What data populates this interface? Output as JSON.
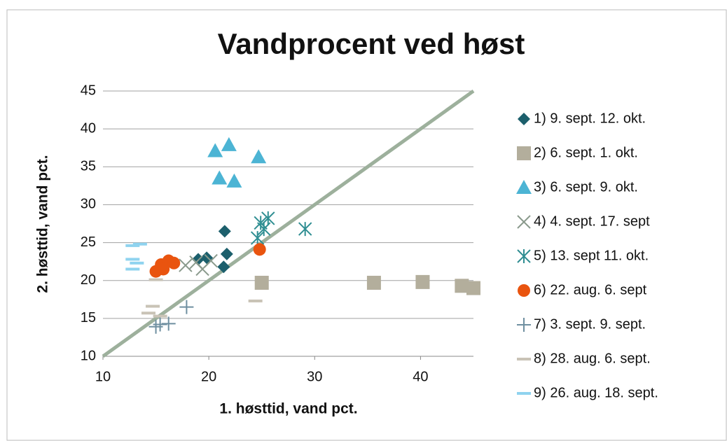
{
  "chart_data": {
    "type": "scatter",
    "title": "Vandprocent ved høst",
    "x_label": "1. høsttid, vand pct.",
    "y_label": "2. høsttid, vand pct.",
    "xlim": [
      10,
      45
    ],
    "ylim": [
      10,
      45
    ],
    "xticks": [
      10,
      20,
      30,
      40
    ],
    "yticks": [
      10,
      15,
      20,
      25,
      30,
      35,
      40,
      45
    ],
    "grid": true,
    "legend": "right",
    "reference_line": {
      "x": [
        10,
        45
      ],
      "y": [
        10,
        45
      ],
      "color": "#9db09c"
    },
    "series": [
      {
        "name": "1) 9. sept. 12. okt.",
        "color": "#1c5f6c",
        "marker": "diamond",
        "x": [
          19,
          19.8,
          21.5,
          21.7,
          21.4
        ],
        "values": [
          22.8,
          23,
          26.5,
          23.5,
          21.8
        ]
      },
      {
        "name": "2) 6. sept. 1. okt.",
        "color": "#b3ae9c",
        "marker": "square",
        "x": [
          25,
          35.6,
          40.2,
          43.9,
          45
        ],
        "values": [
          19.7,
          19.7,
          19.8,
          19.3,
          19
        ]
      },
      {
        "name": "3) 6. sept. 9. okt.",
        "color": "#4cb4d4",
        "marker": "triangle",
        "x": [
          20.6,
          21.9,
          24.7,
          21,
          22.4
        ],
        "values": [
          37.1,
          37.9,
          36.3,
          33.5,
          33.1
        ]
      },
      {
        "name": "4) 4. sept. 17. sept",
        "color": "#8a9a8c",
        "marker": "x",
        "x": [
          17.8,
          18.8,
          19.4,
          20.2
        ],
        "values": [
          22,
          22.4,
          21.5,
          22.6
        ]
      },
      {
        "name": "5) 13. sept 11. okt.",
        "color": "#2f8e92",
        "marker": "star",
        "x": [
          24.6,
          24.9,
          25.2,
          25.6,
          29.1
        ],
        "values": [
          25.6,
          27.6,
          26.8,
          28.2,
          26.8
        ]
      },
      {
        "name": "6) 22. aug. 6. sept",
        "color": "#e9540f",
        "marker": "circle",
        "x": [
          15,
          15.5,
          16.2,
          16.7,
          15.7,
          24.8
        ],
        "values": [
          21.2,
          22.1,
          22.6,
          22.3,
          21.5,
          24.1
        ]
      },
      {
        "name": "7) 3. sept. 9. sept.",
        "color": "#6f8fa0",
        "marker": "plus",
        "x": [
          15,
          15.4,
          16.2,
          17.9
        ],
        "values": [
          13.9,
          14.2,
          14.3,
          16.5
        ]
      },
      {
        "name": "8) 28. aug. 6. sept.",
        "color": "#c9c3b6",
        "marker": "dash",
        "x": [
          14.7,
          14.3,
          15.4,
          15,
          24.4
        ],
        "values": [
          16.6,
          15.7,
          15.3,
          20.1,
          17.3
        ]
      },
      {
        "name": "9) 26. aug. 18. sept.",
        "color": "#8fd3ef",
        "marker": "dash",
        "x": [
          12.8,
          13.5,
          12.8,
          13.2,
          12.8
        ],
        "values": [
          24.6,
          24.8,
          22.8,
          22.3,
          21.5
        ]
      }
    ]
  }
}
